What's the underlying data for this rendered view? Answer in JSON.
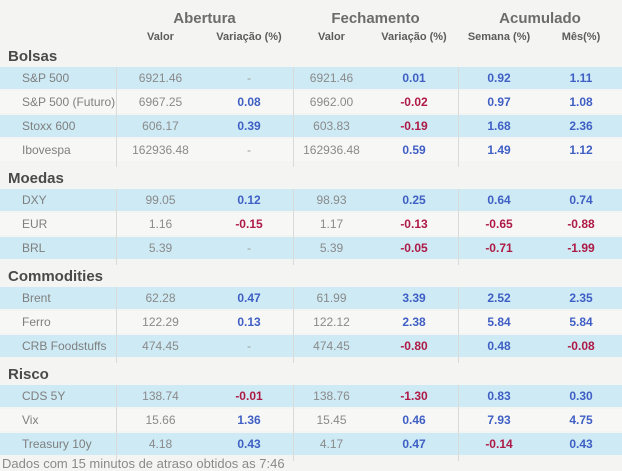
{
  "chart_data": {
    "type": "table",
    "title": "",
    "column_groups": [
      {
        "label": "Abertura",
        "span": 2
      },
      {
        "label": "Fechamento",
        "span": 2
      },
      {
        "label": "Acumulado",
        "span": 2
      }
    ],
    "columns": [
      "Valor",
      "Variação (%)",
      "Valor",
      "Variação (%)",
      "Semana (%)",
      "Mês(%)"
    ],
    "sections": [
      {
        "title": "Bolsas",
        "rows": [
          {
            "label": "S&P 500",
            "values": [
              "6921.46",
              "-",
              "6921.46",
              "0.01",
              "0.92",
              "1.11"
            ]
          },
          {
            "label": "S&P 500 (Futuro)",
            "values": [
              "6967.25",
              "0.08",
              "6962.00",
              "-0.02",
              "0.97",
              "1.08"
            ]
          },
          {
            "label": "Stoxx 600",
            "values": [
              "606.17",
              "0.39",
              "603.83",
              "-0.19",
              "1.68",
              "2.36"
            ]
          },
          {
            "label": "Ibovespa",
            "values": [
              "162936.48",
              "-",
              "162936.48",
              "0.59",
              "1.49",
              "1.12"
            ]
          }
        ]
      },
      {
        "title": "Moedas",
        "rows": [
          {
            "label": "DXY",
            "values": [
              "99.05",
              "0.12",
              "98.93",
              "0.25",
              "0.64",
              "0.74"
            ]
          },
          {
            "label": "EUR",
            "values": [
              "1.16",
              "-0.15",
              "1.17",
              "-0.13",
              "-0.65",
              "-0.88"
            ]
          },
          {
            "label": "BRL",
            "values": [
              "5.39",
              "-",
              "5.39",
              "-0.05",
              "-0.71",
              "-1.99"
            ]
          }
        ]
      },
      {
        "title": "Commodities",
        "rows": [
          {
            "label": "Brent",
            "values": [
              "62.28",
              "0.47",
              "61.99",
              "3.39",
              "2.52",
              "2.35"
            ]
          },
          {
            "label": "Ferro",
            "values": [
              "122.29",
              "0.13",
              "122.12",
              "2.38",
              "5.84",
              "5.84"
            ]
          },
          {
            "label": "CRB Foodstuffs",
            "values": [
              "474.45",
              "-",
              "474.45",
              "-0.80",
              "0.48",
              "-0.08"
            ]
          }
        ]
      },
      {
        "title": "Risco",
        "rows": [
          {
            "label": "CDS 5Y",
            "values": [
              "138.74",
              "-0.01",
              "138.76",
              "-1.30",
              "0.83",
              "0.30"
            ]
          },
          {
            "label": "Vix",
            "values": [
              "15.66",
              "1.36",
              "15.45",
              "0.46",
              "7.93",
              "4.75"
            ]
          },
          {
            "label": "Treasury 10y",
            "values": [
              "4.18",
              "0.43",
              "4.17",
              "0.47",
              "-0.14",
              "0.43"
            ]
          }
        ]
      }
    ],
    "footer": "Dados com 15 minutos de atraso obtidos as 7:46",
    "colors": {
      "positive": "#3f5fc4",
      "negative": "#ae1a45",
      "row_highlight": "#cdeaf5",
      "row_alt": "#f7f7f6",
      "background": "#f4f4f2"
    },
    "layout": {
      "grid": "off",
      "legend": "none"
    }
  }
}
